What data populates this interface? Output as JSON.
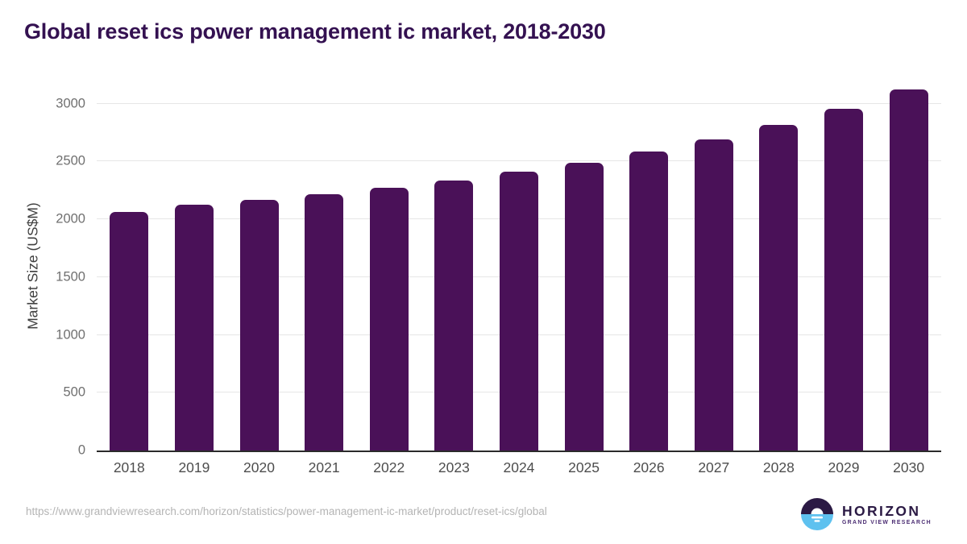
{
  "title": "Global reset ics power management ic market, 2018-2030",
  "chart_data": {
    "type": "bar",
    "title": "Global reset ics power management ic market, 2018-2030",
    "categories": [
      "2018",
      "2019",
      "2020",
      "2021",
      "2022",
      "2023",
      "2024",
      "2025",
      "2026",
      "2027",
      "2028",
      "2029",
      "2030"
    ],
    "values": [
      2064,
      2124,
      2166,
      2214,
      2272,
      2338,
      2412,
      2489,
      2588,
      2692,
      2820,
      2955,
      3122
    ],
    "xlabel": "",
    "ylabel": "Market Size (US$M)",
    "ylim": [
      0,
      3200
    ],
    "yticks": [
      0,
      500,
      1000,
      1500,
      2000,
      2500,
      3000
    ],
    "grid": true,
    "legend": "none",
    "bar_color": "#4a1158"
  },
  "colors": {
    "bar": "#4a1158",
    "title_text": "#341151",
    "gridline": "#e6e6e6",
    "axis_line": "#2b2b2b",
    "y_tick_text": "#707070",
    "x_tick_text": "#4d4d4d",
    "url_text": "#b4b4b4",
    "logo_dark": "#2b1a44",
    "logo_blue": "#5ec1ef",
    "logo_subtitle": "#4b2d73"
  },
  "footer": {
    "source_url": "https://www.grandviewresearch.com/horizon/statistics/power-management-ic-market/product/reset-ics/global",
    "logo_name": "HORIZON",
    "logo_subtitle": "GRAND VIEW RESEARCH"
  }
}
